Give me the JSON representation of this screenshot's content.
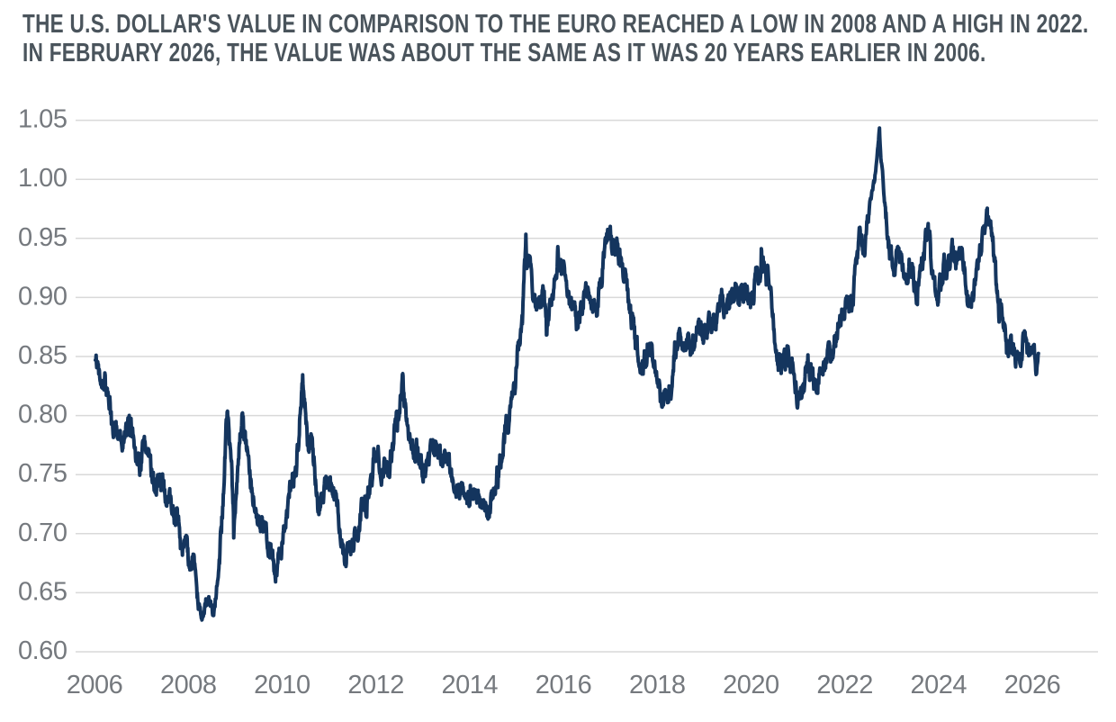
{
  "chart_data": {
    "type": "line",
    "title_lines": [
      "THE U.S. DOLLAR'S VALUE IN COMPARISON TO THE EURO REACHED A LOW IN 2008 AND A HIGH IN 2022.",
      "IN FEBRUARY 2026, THE VALUE WAS ABOUT THE SAME AS IT WAS 20 YEARS EARLIER IN 2006."
    ],
    "series_name": "U.S. dollar value in euros",
    "xlabel": "",
    "ylabel": "",
    "ylim": [
      0.6,
      1.05
    ],
    "xlim": [
      2006,
      2026.4
    ],
    "grid": "horizontal",
    "legend": "none",
    "y_ticks": [
      "1.05",
      "1.00",
      "0.95",
      "0.90",
      "0.85",
      "0.80",
      "0.75",
      "0.70",
      "0.65",
      "0.60"
    ],
    "x_ticks": [
      "2006",
      "2008",
      "2010",
      "2012",
      "2014",
      "2016",
      "2018",
      "2020",
      "2022",
      "2024",
      "2026"
    ],
    "start_year": 2006,
    "monthly_values": [
      [
        0.843,
        0.838,
        0.833,
        0.82,
        0.785,
        0.789,
        0.787,
        0.782,
        0.787,
        0.792,
        0.772,
        0.758
      ],
      [
        0.768,
        0.763,
        0.754,
        0.738,
        0.742,
        0.744,
        0.729,
        0.734,
        0.713,
        0.702,
        0.678,
        0.69
      ],
      [
        0.679,
        0.672,
        0.643,
        0.63,
        0.641,
        0.643,
        0.632,
        0.662,
        0.697,
        0.77,
        0.78,
        0.717
      ],
      [
        0.752,
        0.785,
        0.78,
        0.752,
        0.728,
        0.712,
        0.709,
        0.699,
        0.687,
        0.672,
        0.668,
        0.688
      ],
      [
        0.706,
        0.733,
        0.74,
        0.75,
        0.8,
        0.828,
        0.776,
        0.778,
        0.748,
        0.718,
        0.738,
        0.753
      ],
      [
        0.744,
        0.73,
        0.71,
        0.688,
        0.676,
        0.693,
        0.699,
        0.694,
        0.728,
        0.722,
        0.74,
        0.764
      ],
      [
        0.772,
        0.753,
        0.756,
        0.76,
        0.786,
        0.796,
        0.82,
        0.803,
        0.777,
        0.771,
        0.78,
        0.76
      ],
      [
        0.748,
        0.755,
        0.772,
        0.766,
        0.772,
        0.76,
        0.762,
        0.751,
        0.742,
        0.73,
        0.74,
        0.729
      ],
      [
        0.734,
        0.731,
        0.723,
        0.723,
        0.72,
        0.734,
        0.74,
        0.755,
        0.775,
        0.791,
        0.803,
        0.818
      ],
      [
        0.858,
        0.881,
        0.937,
        0.923,
        0.894,
        0.89,
        0.909,
        0.88,
        0.889,
        0.898,
        0.934,
        0.92
      ],
      [
        0.921,
        0.898,
        0.894,
        0.883,
        0.89,
        0.899,
        0.903,
        0.893,
        0.891,
        0.909,
        0.936,
        0.951
      ],
      [
        0.939,
        0.941,
        0.932,
        0.921,
        0.897,
        0.882,
        0.864,
        0.845,
        0.84,
        0.853,
        0.849,
        0.84
      ],
      [
        0.818,
        0.806,
        0.81,
        0.818,
        0.849,
        0.859,
        0.856,
        0.864,
        0.86,
        0.871,
        0.881,
        0.876
      ],
      [
        0.874,
        0.882,
        0.886,
        0.89,
        0.894,
        0.885,
        0.895,
        0.903,
        0.91,
        0.902,
        0.905,
        0.899
      ],
      [
        0.905,
        0.92,
        0.916,
        0.92,
        0.915,
        0.888,
        0.855,
        0.843,
        0.852,
        0.851,
        0.839,
        0.819
      ],
      [
        0.818,
        0.828,
        0.848,
        0.833,
        0.821,
        0.838,
        0.846,
        0.85,
        0.86,
        0.861,
        0.882,
        0.885
      ],
      [
        0.89,
        0.887,
        0.907,
        0.938,
        0.935,
        0.95,
        0.983,
        0.997,
        1.028,
        1.012,
        0.966,
        0.943
      ],
      [
        0.925,
        0.938,
        0.925,
        0.91,
        0.928,
        0.92,
        0.901,
        0.92,
        0.943,
        0.948,
        0.92,
        0.903
      ],
      [
        0.918,
        0.926,
        0.922,
        0.937,
        0.923,
        0.932,
        0.921,
        0.901,
        0.897,
        0.92,
        0.946,
        0.958
      ],
      [
        0.97,
        0.958,
        0.922,
        0.882,
        0.888,
        0.855,
        0.862,
        0.858,
        0.848,
        0.862,
        0.866,
        0.856
      ],
      [
        0.858
      ]
    ],
    "extra_points": [
      [
        2006.02,
        0.847
      ],
      [
        2008.83,
        0.803
      ],
      [
        2008.87,
        0.79
      ],
      [
        2008.91,
        0.768
      ],
      [
        2008.97,
        0.69
      ],
      [
        2009.17,
        0.798
      ],
      [
        2010.44,
        0.846
      ],
      [
        2011.37,
        0.67
      ],
      [
        2012.56,
        0.831
      ],
      [
        2014.38,
        0.717
      ],
      [
        2015.2,
        0.952
      ],
      [
        2015.64,
        0.864
      ],
      [
        2017.0,
        0.965
      ],
      [
        2018.12,
        0.801
      ],
      [
        2020.22,
        0.932
      ],
      [
        2021.02,
        0.81
      ],
      [
        2022.33,
        0.949
      ],
      [
        2022.74,
        1.043
      ],
      [
        2022.77,
        1.015
      ],
      [
        2023.76,
        0.956
      ],
      [
        2025.04,
        0.978
      ],
      [
        2026.04,
        0.858
      ],
      [
        2026.08,
        0.835
      ],
      [
        2026.13,
        0.852
      ]
    ],
    "colors": {
      "line": "#14355e",
      "grid": "#d9d9d9",
      "tick_label": "#75797e",
      "title": "#4a545c"
    }
  }
}
